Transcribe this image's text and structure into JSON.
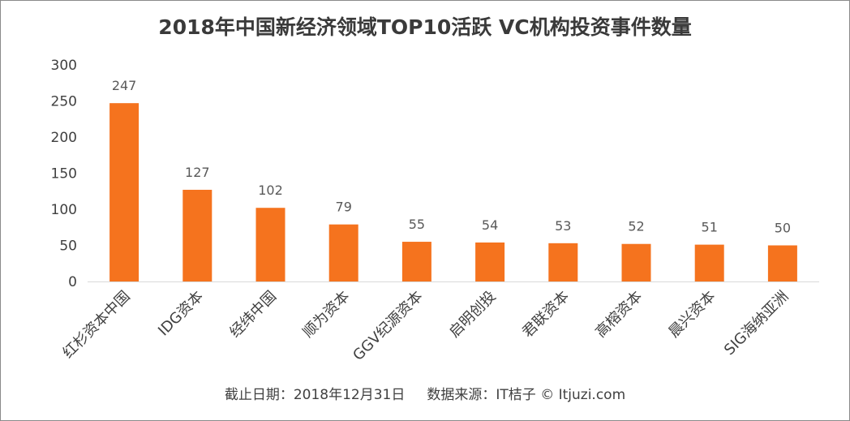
{
  "chart_data": {
    "type": "bar",
    "title": "2018年中国新经济领域TOP10活跃 VC机构投资事件数量",
    "categories": [
      "红杉资本中国",
      "IDG资本",
      "经纬中国",
      "顺为资本",
      "GGV纪源资本",
      "启明创投",
      "君联资本",
      "高榕资本",
      "晨兴资本",
      "SIG海纳亚洲"
    ],
    "values": [
      247,
      127,
      102,
      79,
      55,
      54,
      53,
      52,
      51,
      50
    ],
    "xlabel": "",
    "ylabel": "",
    "ylim": [
      0,
      300
    ],
    "yticks": [
      "0",
      "50",
      "100",
      "150",
      "200",
      "250",
      "300"
    ],
    "grid": false,
    "legend": "none",
    "bar_color": "#F5731E",
    "data_labels": true
  },
  "footer": {
    "note": "截止日期：2018年12月31日     数据来源：IT桔子 © Itjuzi.com"
  }
}
